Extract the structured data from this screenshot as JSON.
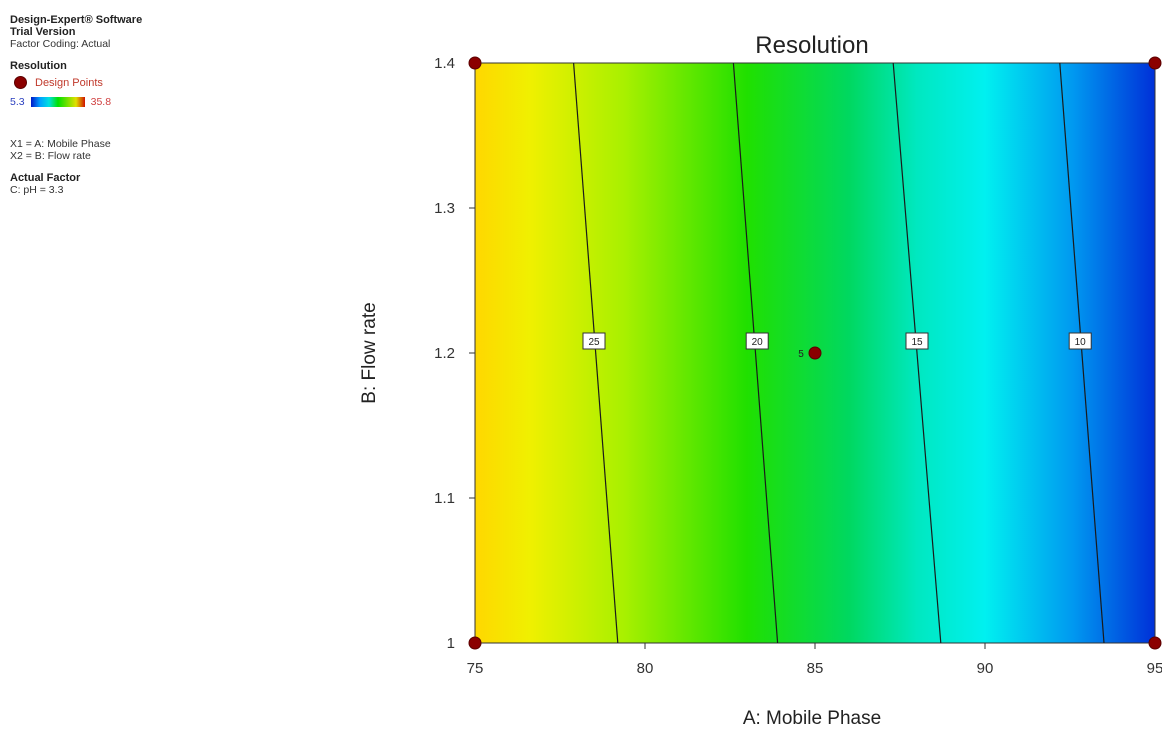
{
  "legend": {
    "software": "Design-Expert® Software",
    "version": "Trial Version",
    "coding": "Factor Coding: Actual",
    "response": "Resolution",
    "design_points_label": "Design Points",
    "range_min": "5.3",
    "range_max": "35.8",
    "x1": "X1 = A: Mobile Phase",
    "x2": "X2 = B: Flow rate",
    "actual_factor_heading": "Actual Factor",
    "actual_factor": "C: pH = 3.3",
    "design_point_color": "#8b0000",
    "low_color": "#0018c8",
    "high_color": "#d01000"
  },
  "chart_data": {
    "type": "contour",
    "title": "Resolution",
    "xlabel": "A: Mobile Phase",
    "ylabel": "B: Flow rate",
    "xlim": [
      75,
      95
    ],
    "ylim": [
      1.0,
      1.4
    ],
    "x_ticks": [
      "75",
      "80",
      "85",
      "90",
      "95"
    ],
    "y_ticks": [
      "1",
      "1.1",
      "1.2",
      "1.3",
      "1.4"
    ],
    "color_range": [
      5.3,
      35.8
    ],
    "contours": [
      {
        "level": "25",
        "bottom": [
          79.2,
          1.0
        ],
        "top": [
          77.9,
          1.4
        ],
        "label_at": [
          78.5,
          1.2
        ]
      },
      {
        "level": "20",
        "bottom": [
          83.9,
          1.0
        ],
        "top": [
          82.6,
          1.4
        ],
        "label_at": [
          83.3,
          1.2
        ]
      },
      {
        "level": "15",
        "bottom": [
          88.7,
          1.0
        ],
        "top": [
          87.3,
          1.4
        ],
        "label_at": [
          88.0,
          1.2
        ]
      },
      {
        "level": "10",
        "bottom": [
          93.5,
          1.0
        ],
        "top": [
          92.2,
          1.4
        ],
        "label_at": [
          92.8,
          1.2
        ]
      }
    ],
    "design_points": [
      {
        "x": 75,
        "y": 1.0,
        "label": ""
      },
      {
        "x": 75,
        "y": 1.4,
        "label": ""
      },
      {
        "x": 95,
        "y": 1.0,
        "label": ""
      },
      {
        "x": 95,
        "y": 1.4,
        "label": ""
      },
      {
        "x": 85,
        "y": 1.2,
        "label": "5"
      }
    ]
  }
}
